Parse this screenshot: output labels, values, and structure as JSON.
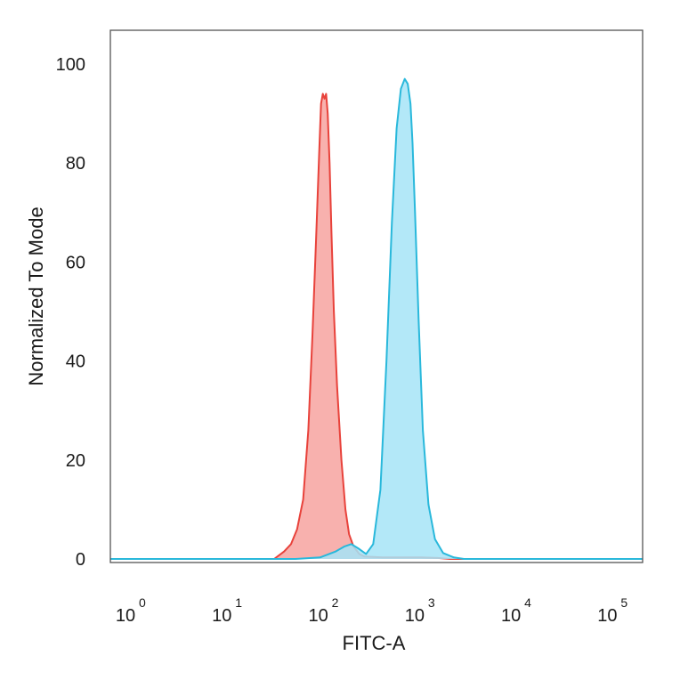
{
  "chart_data": {
    "type": "area",
    "xlabel": "FITC-A",
    "ylabel": "Normalized To Mode",
    "x_scale": "log",
    "xlim": [
      0.6,
      200000
    ],
    "ylim": [
      0,
      105
    ],
    "y_ticks": [
      {
        "value": 0,
        "label": "0"
      },
      {
        "value": 20,
        "label": "20"
      },
      {
        "value": 40,
        "label": "40"
      },
      {
        "value": 60,
        "label": "60"
      },
      {
        "value": 80,
        "label": "80"
      },
      {
        "value": 100,
        "label": "100"
      }
    ],
    "x_ticks": [
      {
        "value": 1,
        "base": "10",
        "exp": "0"
      },
      {
        "value": 10,
        "base": "10",
        "exp": "1"
      },
      {
        "value": 100,
        "base": "10",
        "exp": "2"
      },
      {
        "value": 1000,
        "base": "10",
        "exp": "3"
      },
      {
        "value": 10000,
        "base": "10",
        "exp": "4"
      },
      {
        "value": 100000,
        "base": "10",
        "exp": "5"
      }
    ],
    "grid": false,
    "legend": "none",
    "series": [
      {
        "color": "#e8423b",
        "fill": "#f7a3a0",
        "x": [
          0.6,
          30,
          38,
          45,
          52,
          60,
          68,
          75,
          82,
          88,
          92,
          96,
          100,
          104,
          108,
          113,
          118,
          125,
          135,
          150,
          165,
          180,
          200,
          230,
          260,
          400,
          1000,
          1500,
          2000,
          200000
        ],
        "y": [
          0,
          0,
          1.5,
          3,
          6,
          12,
          26,
          45,
          65,
          82,
          92,
          94,
          93,
          94,
          90,
          80,
          66,
          50,
          35,
          20,
          10,
          5,
          2.5,
          1,
          0.5,
          0.3,
          0.3,
          0.2,
          0,
          0
        ]
      },
      {
        "color": "#29b8db",
        "fill": "#a6e4f7",
        "x": [
          0.6,
          50,
          90,
          130,
          160,
          190,
          230,
          270,
          320,
          380,
          440,
          500,
          560,
          620,
          680,
          730,
          780,
          820,
          870,
          950,
          1050,
          1200,
          1400,
          1700,
          2200,
          2800,
          200000
        ],
        "y": [
          0,
          0,
          0.3,
          1.5,
          2.5,
          3,
          2,
          1,
          3,
          14,
          40,
          68,
          87,
          95,
          97,
          96,
          92,
          84,
          70,
          48,
          26,
          11,
          4,
          1.2,
          0.3,
          0,
          0
        ]
      }
    ]
  }
}
